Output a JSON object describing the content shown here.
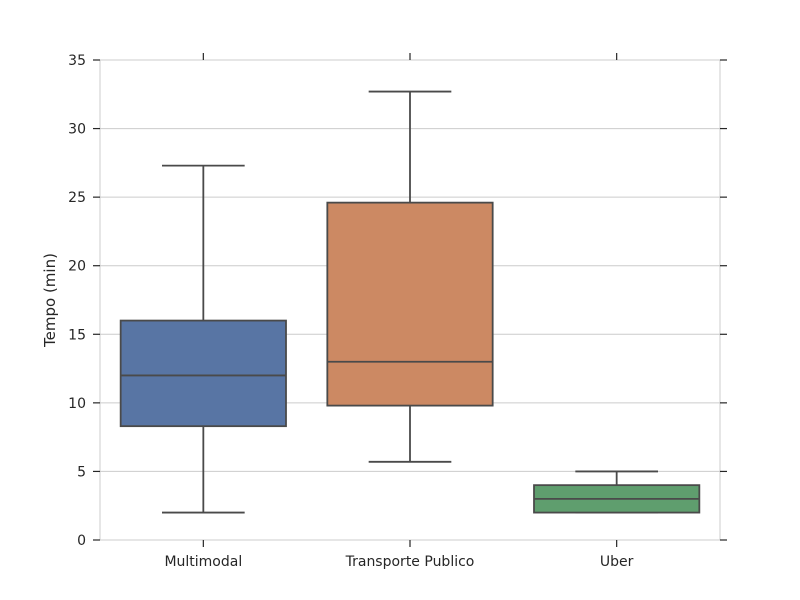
{
  "chart_data": {
    "type": "box",
    "title": "",
    "xlabel": "",
    "ylabel": "Tempo (min)",
    "ylim": [
      0,
      35
    ],
    "yticks": [
      0,
      5,
      10,
      15,
      20,
      25,
      30,
      35
    ],
    "grid": "horizontal",
    "categories": [
      "Multimodal",
      "Transporte Publico",
      "Uber"
    ],
    "boxes": [
      {
        "category": "Multimodal",
        "min": 2,
        "q1": 8.3,
        "median": 12,
        "q3": 16,
        "max": 27.3,
        "color": "#5875a4"
      },
      {
        "category": "Transporte Publico",
        "min": 5.7,
        "q1": 9.8,
        "median": 13,
        "q3": 24.6,
        "max": 32.7,
        "color": "#cc8963"
      },
      {
        "category": "Uber",
        "min": 2,
        "q1": 2,
        "median": 3,
        "q3": 4,
        "max": 5,
        "color": "#5f9e6e"
      }
    ]
  },
  "colors": {
    "grid": "#cccccc",
    "spine": "#cccccc",
    "box_edge": "#4a4a4a",
    "tick": "#262626"
  }
}
